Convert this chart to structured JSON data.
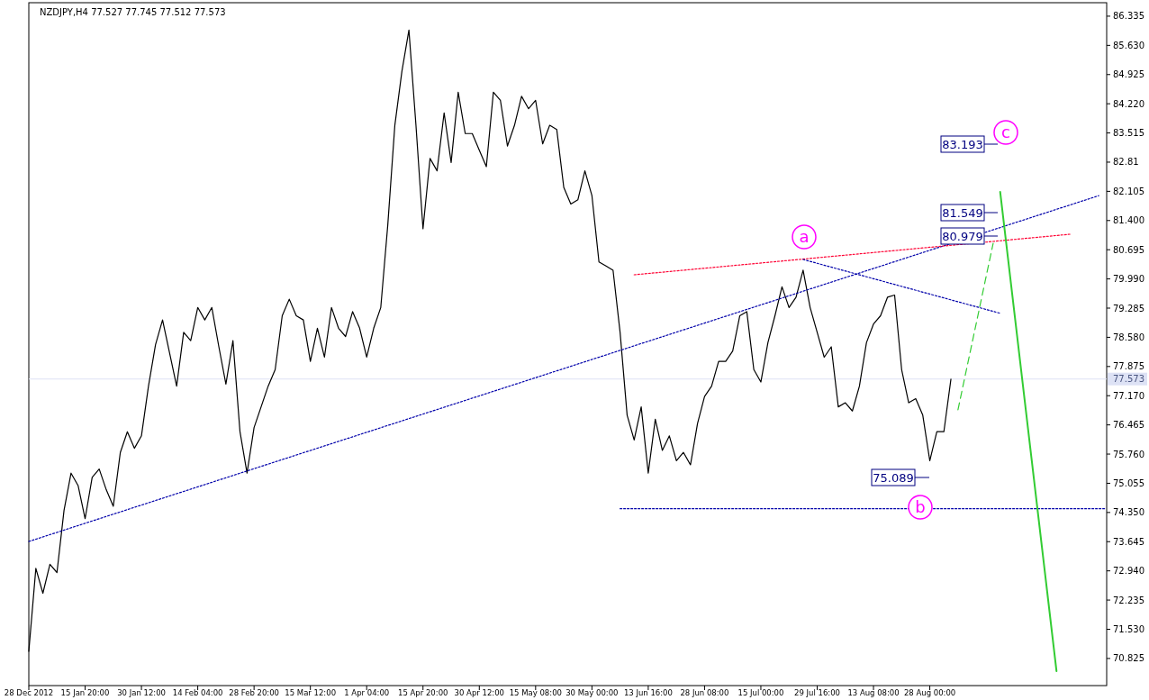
{
  "chart_data": {
    "type": "line",
    "title": "NZDJPY,H4  77.527 77.745 77.512 77.573",
    "ylim": [
      70.17,
      86.66
    ],
    "categories": [
      "28 Dec 2012",
      null,
      null,
      null,
      null,
      null,
      null,
      null,
      "15 Jan 20:00",
      null,
      null,
      null,
      null,
      null,
      null,
      null,
      "30 Jan 12:00",
      null,
      null,
      null,
      null,
      null,
      null,
      null,
      "14 Feb 04:00",
      null,
      null,
      null,
      null,
      null,
      null,
      null,
      "28 Feb 20:00",
      null,
      null,
      null,
      null,
      null,
      null,
      null,
      "15 Mar 12:00",
      null,
      null,
      null,
      null,
      null,
      null,
      null,
      "1 Apr 04:00",
      null,
      null,
      null,
      null,
      null,
      null,
      null,
      "15 Apr 20:00",
      null,
      null,
      null,
      null,
      null,
      null,
      null,
      "30 Apr 12:00",
      null,
      null,
      null,
      null,
      null,
      null,
      null,
      "15 May 08:00",
      null,
      null,
      null,
      null,
      null,
      null,
      null,
      "30 May 00:00",
      null,
      null,
      null,
      null,
      null,
      null,
      null,
      "13 Jun 16:00",
      null,
      null,
      null,
      null,
      null,
      null,
      null,
      "28 Jun 08:00",
      null,
      null,
      null,
      null,
      null,
      null,
      null,
      "15 Jul 00:00",
      null,
      null,
      null,
      null,
      null,
      null,
      null,
      "29 Jul 16:00",
      null,
      null,
      null,
      null,
      null,
      null,
      null,
      "13 Aug 08:00",
      null,
      null,
      null,
      null,
      null,
      null,
      null,
      "28 Aug 00:00",
      null,
      null,
      null,
      null,
      null,
      null,
      null,
      null,
      null,
      null,
      null,
      null,
      null,
      null,
      null,
      null,
      null,
      null,
      null,
      null,
      null,
      null,
      null,
      null,
      null
    ],
    "yticks": [
      70.825,
      {
        "value": 71.53,
        "label": "71.530"
      },
      72.235,
      {
        "value": 72.94,
        "label": "72.940"
      },
      73.645,
      {
        "value": 74.35,
        "label": "74.350"
      },
      75.055,
      {
        "value": 75.76,
        "label": "75.760"
      },
      76.465,
      {
        "value": 77.17,
        "label": "77.170"
      },
      77.875,
      {
        "value": 78.58,
        "label": "78.580"
      },
      79.285,
      {
        "value": 79.99,
        "label": "79.990"
      },
      80.695,
      {
        "value": 81.4,
        "label": "81.400"
      },
      82.105,
      82.81,
      83.515,
      {
        "value": 84.22,
        "label": "84.220"
      },
      84.925,
      {
        "value": 85.63,
        "label": "85.630"
      },
      86.335
    ],
    "series": [
      {
        "color": "#000000",
        "line_style": "solid",
        "values": [
          71.0,
          73.0,
          72.4,
          73.1,
          72.9,
          74.4,
          75.3,
          75.0,
          74.2,
          75.2,
          75.4,
          74.9,
          74.5,
          75.8,
          76.3,
          75.9,
          76.2,
          77.4,
          78.4,
          79.0,
          78.2,
          77.4,
          78.7,
          78.5,
          79.3,
          79.0,
          79.3,
          78.35,
          77.45,
          78.5,
          76.3,
          75.3,
          76.4,
          76.9,
          77.4,
          77.8,
          79.1,
          79.5,
          79.1,
          79.0,
          78.0,
          78.8,
          78.1,
          79.3,
          78.8,
          78.6,
          79.2,
          78.8,
          78.1,
          78.8,
          79.3,
          81.3,
          83.7,
          85.0,
          86.0,
          83.7,
          81.2,
          82.9,
          82.6,
          84.0,
          82.8,
          84.5,
          83.5,
          83.5,
          83.1,
          82.7,
          84.5,
          84.3,
          83.2,
          83.7,
          84.4,
          84.1,
          84.3,
          83.25,
          83.7,
          83.6,
          82.2,
          81.8,
          81.9,
          82.6,
          82.0,
          80.4,
          80.3,
          80.2,
          78.7,
          76.7,
          76.1,
          76.9,
          75.3,
          76.6,
          75.85,
          76.2,
          75.6,
          75.8,
          75.5,
          76.5,
          77.15,
          77.4,
          78.0,
          78.0,
          78.25,
          79.1,
          79.2,
          77.8,
          77.5,
          78.45,
          79.1,
          79.8,
          79.3,
          79.55,
          80.2,
          79.3,
          78.7,
          78.1,
          78.35,
          76.9,
          77.0,
          76.8,
          77.4,
          78.45,
          78.9,
          79.1,
          79.55,
          79.6,
          77.8,
          77.0,
          77.1,
          76.7,
          75.6,
          76.3,
          76.3,
          77.57,
          null,
          null,
          null,
          null,
          null,
          null,
          null,
          null,
          null,
          null,
          null,
          null,
          null,
          null,
          null,
          null,
          null,
          null,
          null,
          null,
          null,
          null
        ]
      },
      {
        "color": "#0000aa",
        "line_style": "dotted",
        "values": [
          73.65,
          null,
          null,
          null,
          null,
          null,
          null,
          null,
          null,
          null,
          null,
          null,
          null,
          null,
          null,
          null,
          null,
          null,
          null,
          null,
          null,
          null,
          null,
          null,
          null,
          null,
          null,
          null,
          null,
          null,
          null,
          null,
          null,
          null,
          null,
          null,
          null,
          null,
          null,
          null,
          null,
          null,
          null,
          null,
          null,
          null,
          null,
          null,
          null,
          null,
          null,
          null,
          null,
          null,
          null,
          null,
          null,
          null,
          null,
          null,
          null,
          null,
          null,
          null,
          null,
          null,
          null,
          null,
          null,
          null,
          null,
          null,
          null,
          null,
          null,
          null,
          null,
          null,
          null,
          null,
          null,
          null,
          null,
          null,
          null,
          null,
          null,
          null,
          null,
          null,
          null,
          null,
          null,
          null,
          null,
          null,
          null,
          null,
          null,
          null,
          null,
          null,
          null,
          null,
          null,
          null,
          null,
          null,
          null,
          null,
          null,
          null,
          null,
          null,
          null,
          null,
          null,
          null,
          null,
          null,
          null,
          null,
          null,
          null,
          null,
          null,
          null,
          null,
          null,
          null,
          null,
          null,
          null,
          null,
          null,
          null,
          null,
          null,
          null,
          null,
          null,
          null,
          null,
          null,
          null,
          null,
          null,
          null,
          null,
          null,
          null,
          null,
          82.0,
          null
        ]
      },
      {
        "color": "#ff0033",
        "line_style": "dotted",
        "values": [
          null,
          null,
          null,
          null,
          null,
          null,
          null,
          null,
          null,
          null,
          null,
          null,
          null,
          null,
          null,
          null,
          null,
          null,
          null,
          null,
          null,
          null,
          null,
          null,
          null,
          null,
          null,
          null,
          null,
          null,
          null,
          null,
          null,
          null,
          null,
          null,
          null,
          null,
          null,
          null,
          null,
          null,
          null,
          null,
          null,
          null,
          null,
          null,
          null,
          null,
          null,
          null,
          null,
          null,
          null,
          null,
          null,
          null,
          null,
          null,
          null,
          null,
          null,
          null,
          null,
          null,
          null,
          null,
          null,
          null,
          null,
          null,
          null,
          null,
          null,
          null,
          null,
          null,
          null,
          null,
          null,
          null,
          null,
          null,
          null,
          null,
          80.09,
          null,
          null,
          null,
          null,
          null,
          null,
          null,
          null,
          null,
          null,
          null,
          null,
          null,
          null,
          null,
          null,
          null,
          null,
          null,
          null,
          null,
          null,
          null,
          null,
          null,
          null,
          null,
          null,
          null,
          null,
          null,
          null,
          null,
          null,
          null,
          null,
          null,
          null,
          null,
          null,
          null,
          null,
          null,
          null,
          null,
          null,
          null,
          null,
          null,
          null,
          null,
          null,
          null,
          null,
          null,
          null,
          null,
          null,
          null,
          null,
          null,
          81.07,
          null,
          null,
          null,
          null,
          null
        ]
      },
      {
        "color": "#0000aa",
        "line_style": "dotted",
        "values": [
          null,
          null,
          null,
          null,
          null,
          null,
          null,
          null,
          null,
          null,
          null,
          null,
          null,
          null,
          null,
          null,
          null,
          null,
          null,
          null,
          null,
          null,
          null,
          null,
          null,
          null,
          null,
          null,
          null,
          null,
          null,
          null,
          null,
          null,
          null,
          null,
          null,
          null,
          null,
          null,
          null,
          null,
          null,
          null,
          null,
          null,
          null,
          null,
          null,
          null,
          null,
          null,
          null,
          null,
          null,
          null,
          null,
          null,
          null,
          null,
          null,
          null,
          null,
          null,
          null,
          null,
          null,
          null,
          null,
          null,
          null,
          null,
          null,
          null,
          null,
          null,
          null,
          null,
          null,
          null,
          null,
          null,
          null,
          null,
          null,
          null,
          null,
          null,
          null,
          null,
          null,
          null,
          null,
          null,
          null,
          null,
          null,
          null,
          null,
          null,
          null,
          null,
          null,
          null,
          null,
          null,
          null,
          null,
          null,
          null,
          80.46,
          null,
          null,
          null,
          null,
          null,
          null,
          null,
          null,
          null,
          null,
          null,
          null,
          null,
          null,
          null,
          null,
          null,
          null,
          null,
          null,
          null,
          null,
          null,
          null,
          null,
          null,
          null,
          79.16,
          null,
          null,
          null,
          null,
          null,
          null,
          null,
          null,
          null,
          null,
          null,
          null,
          null,
          null,
          null
        ]
      },
      {
        "color": "#0000aa",
        "line_style": "dotted",
        "values": [
          null,
          null,
          null,
          null,
          null,
          null,
          null,
          null,
          null,
          null,
          null,
          null,
          null,
          null,
          null,
          null,
          null,
          null,
          null,
          null,
          null,
          null,
          null,
          null,
          null,
          null,
          null,
          null,
          null,
          null,
          null,
          null,
          null,
          null,
          null,
          null,
          null,
          null,
          null,
          null,
          null,
          null,
          null,
          null,
          null,
          null,
          null,
          null,
          null,
          null,
          null,
          null,
          null,
          null,
          null,
          null,
          null,
          null,
          null,
          null,
          null,
          null,
          null,
          null,
          null,
          null,
          null,
          null,
          null,
          null,
          null,
          null,
          null,
          null,
          null,
          null,
          null,
          null,
          null,
          null,
          null,
          null,
          null,
          null,
          74.44,
          null,
          null,
          null,
          null,
          null,
          null,
          null,
          null,
          null,
          null,
          null,
          null,
          null,
          null,
          null,
          null,
          null,
          null,
          null,
          null,
          null,
          null,
          null,
          null,
          null,
          null,
          null,
          null,
          null,
          null,
          null,
          null,
          null,
          null,
          null,
          null,
          null,
          null,
          null,
          null,
          null,
          null,
          null,
          null,
          null,
          null,
          null,
          null,
          null,
          null,
          null,
          null,
          null,
          null,
          null,
          null,
          null,
          null,
          null,
          null,
          null,
          null,
          null,
          null,
          null,
          null,
          null,
          null,
          74.44
        ]
      },
      {
        "color": "#33cc33",
        "line_style": "dashed",
        "values": [
          null,
          null,
          null,
          null,
          null,
          null,
          null,
          null,
          null,
          null,
          null,
          null,
          null,
          null,
          null,
          null,
          null,
          null,
          null,
          null,
          null,
          null,
          null,
          null,
          null,
          null,
          null,
          null,
          null,
          null,
          null,
          null,
          null,
          null,
          null,
          null,
          null,
          null,
          null,
          null,
          null,
          null,
          null,
          null,
          null,
          null,
          null,
          null,
          null,
          null,
          null,
          null,
          null,
          null,
          null,
          null,
          null,
          null,
          null,
          null,
          null,
          null,
          null,
          null,
          null,
          null,
          null,
          null,
          null,
          null,
          null,
          null,
          null,
          null,
          null,
          null,
          null,
          null,
          null,
          null,
          null,
          null,
          null,
          null,
          null,
          null,
          null,
          null,
          null,
          null,
          null,
          null,
          null,
          null,
          null,
          null,
          null,
          null,
          null,
          null,
          null,
          null,
          null,
          null,
          null,
          null,
          null,
          null,
          null,
          null,
          null,
          null,
          null,
          null,
          null,
          null,
          null,
          null,
          null,
          null,
          null,
          null,
          null,
          null,
          null,
          null,
          null,
          null,
          null,
          null,
          null,
          null,
          76.83,
          null,
          null,
          null,
          null,
          80.85,
          null,
          null,
          null,
          null,
          null,
          null,
          null,
          null,
          null,
          null,
          null,
          null,
          null,
          null,
          null,
          null
        ]
      },
      {
        "color": "#33cc33",
        "line_style": "solid",
        "values": [
          null,
          null,
          null,
          null,
          null,
          null,
          null,
          null,
          null,
          null,
          null,
          null,
          null,
          null,
          null,
          null,
          null,
          null,
          null,
          null,
          null,
          null,
          null,
          null,
          null,
          null,
          null,
          null,
          null,
          null,
          null,
          null,
          null,
          null,
          null,
          null,
          null,
          null,
          null,
          null,
          null,
          null,
          null,
          null,
          null,
          null,
          null,
          null,
          null,
          null,
          null,
          null,
          null,
          null,
          null,
          null,
          null,
          null,
          null,
          null,
          null,
          null,
          null,
          null,
          null,
          null,
          null,
          null,
          null,
          null,
          null,
          null,
          null,
          null,
          null,
          null,
          null,
          null,
          null,
          null,
          null,
          null,
          null,
          null,
          null,
          null,
          null,
          null,
          null,
          null,
          null,
          null,
          null,
          null,
          null,
          null,
          null,
          null,
          null,
          null,
          null,
          null,
          null,
          null,
          null,
          null,
          null,
          null,
          null,
          null,
          null,
          null,
          null,
          null,
          null,
          null,
          null,
          null,
          null,
          null,
          null,
          null,
          null,
          null,
          null,
          null,
          null,
          null,
          null,
          null,
          null,
          null,
          null,
          null,
          null,
          null,
          null,
          null,
          82.09,
          null,
          null,
          null,
          null,
          null,
          null,
          null,
          70.52,
          null,
          null,
          null,
          null,
          null,
          null,
          null
        ]
      }
    ],
    "ref_lines": [
      {
        "axis": "y",
        "value": 77.573,
        "label": "77.573",
        "color": "#dde2f5"
      }
    ],
    "annotations": [
      "83.193",
      "81.549",
      "80.979",
      "75.089",
      "a",
      "b",
      "c"
    ]
  }
}
